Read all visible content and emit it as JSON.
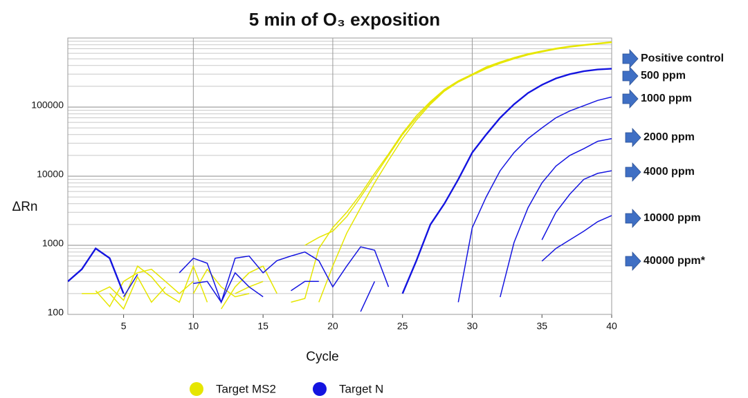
{
  "chart_data": {
    "type": "line",
    "title": "5 min of O₃ exposition",
    "x_label": "Cycle",
    "y_label": "ΔRn",
    "log_y": true,
    "grid": true,
    "xlim": [
      1,
      40
    ],
    "xticks": [
      5,
      10,
      15,
      20,
      25,
      30,
      35,
      40
    ],
    "ylim": [
      100,
      1000000
    ],
    "yticks": [
      100,
      1000,
      {
        "value": 10000,
        "label": "10000"
      },
      100000
    ],
    "x": [
      1,
      2,
      3,
      4,
      5,
      6,
      7,
      8,
      9,
      10,
      11,
      12,
      13,
      14,
      15,
      16,
      17,
      18,
      19,
      20,
      21,
      22,
      23,
      24,
      25,
      26,
      27,
      28,
      29,
      30,
      31,
      32,
      33,
      34,
      35,
      36,
      37,
      38,
      39,
      40
    ],
    "series": [
      {
        "name": "Target MS2",
        "color": "#e6e600",
        "lines": [
          [
            null,
            200,
            200,
            250,
            160,
            500,
            350,
            200,
            150,
            500,
            150,
            null,
            200,
            250,
            300,
            null,
            150,
            170,
            900,
            1800,
            3000,
            5500,
            11000,
            21000,
            42000,
            75000,
            120000,
            180000,
            240000,
            300000,
            380000,
            450000,
            520000,
            590000,
            650000,
            710000,
            760000,
            800000,
            840000,
            880000
          ],
          [
            null,
            null,
            220,
            130,
            300,
            400,
            450,
            300,
            200,
            300,
            null,
            120,
            250,
            400,
            500,
            200,
            null,
            1000,
            1300,
            1600,
            2600,
            5000,
            10000,
            20000,
            40000,
            70000,
            115000,
            175000,
            235000,
            295000,
            370000,
            440000,
            510000,
            580000,
            640000,
            700000,
            750000,
            790000,
            830000,
            870000
          ],
          [
            300,
            null,
            null,
            200,
            120,
            350,
            150,
            250,
            null,
            200,
            450,
            250,
            180,
            200,
            null,
            null,
            null,
            null,
            150,
            500,
            1500,
            3500,
            8000,
            17000,
            35000,
            65000,
            110000,
            170000,
            230000,
            290000,
            360000,
            430000,
            500000,
            570000,
            630000,
            690000,
            740000,
            780000,
            820000,
            860000
          ]
        ]
      },
      {
        "name": "Target N",
        "color": "#1414e0",
        "lines": [
          [
            300,
            450,
            900,
            650,
            200,
            null,
            null,
            null,
            null,
            null,
            null,
            null,
            null,
            null,
            null,
            null,
            null,
            null,
            null,
            null,
            null,
            null,
            null,
            null,
            200,
            600,
            2000,
            4000,
            9000,
            22000,
            40000,
            70000,
            110000,
            160000,
            210000,
            260000,
            300000,
            330000,
            350000,
            360000
          ],
          [
            null,
            null,
            null,
            null,
            null,
            null,
            null,
            null,
            null,
            null,
            null,
            null,
            null,
            null,
            null,
            null,
            null,
            null,
            null,
            null,
            null,
            null,
            null,
            null,
            null,
            null,
            null,
            null,
            150,
            1800,
            5000,
            12000,
            22000,
            35000,
            50000,
            70000,
            88000,
            105000,
            125000,
            140000
          ],
          [
            null,
            null,
            null,
            null,
            null,
            null,
            null,
            null,
            null,
            null,
            null,
            null,
            null,
            null,
            null,
            null,
            null,
            null,
            null,
            null,
            null,
            null,
            null,
            null,
            null,
            null,
            null,
            null,
            null,
            null,
            null,
            178,
            1100,
            3500,
            8000,
            14000,
            20000,
            25000,
            32000,
            35000
          ],
          [
            null,
            null,
            null,
            null,
            null,
            null,
            null,
            null,
            null,
            null,
            null,
            null,
            null,
            null,
            null,
            null,
            null,
            null,
            null,
            null,
            null,
            null,
            null,
            null,
            null,
            null,
            null,
            null,
            null,
            null,
            null,
            null,
            null,
            null,
            1200,
            3000,
            5500,
            9000,
            11000,
            12000
          ],
          [
            null,
            null,
            null,
            null,
            null,
            null,
            null,
            null,
            null,
            null,
            null,
            null,
            null,
            null,
            null,
            null,
            null,
            null,
            null,
            null,
            null,
            null,
            null,
            null,
            null,
            null,
            null,
            null,
            null,
            null,
            null,
            null,
            null,
            null,
            590,
            900,
            1200,
            1600,
            2200,
            2700
          ],
          [
            null,
            null,
            null,
            null,
            null,
            null,
            null,
            null,
            400,
            650,
            550,
            150,
            650,
            700,
            400,
            600,
            700,
            800,
            600,
            250,
            500,
            950,
            850,
            250,
            null,
            null,
            null,
            null,
            null,
            null,
            null,
            null,
            null,
            null,
            null,
            null,
            null,
            null,
            null,
            null
          ],
          [
            null,
            null,
            null,
            null,
            180,
            380,
            null,
            null,
            null,
            280,
            300,
            150,
            400,
            250,
            180,
            null,
            220,
            300,
            300,
            null,
            null,
            110,
            300,
            null,
            null,
            null,
            null,
            null,
            null,
            null,
            null,
            null,
            null,
            null,
            null,
            null,
            null,
            null,
            null,
            null
          ]
        ]
      }
    ],
    "annotations": [
      "Positive control",
      "500 ppm",
      "1000 ppm",
      "2000 ppm",
      "4000 ppm",
      "10000 ppm",
      "40000 ppm*"
    ]
  }
}
